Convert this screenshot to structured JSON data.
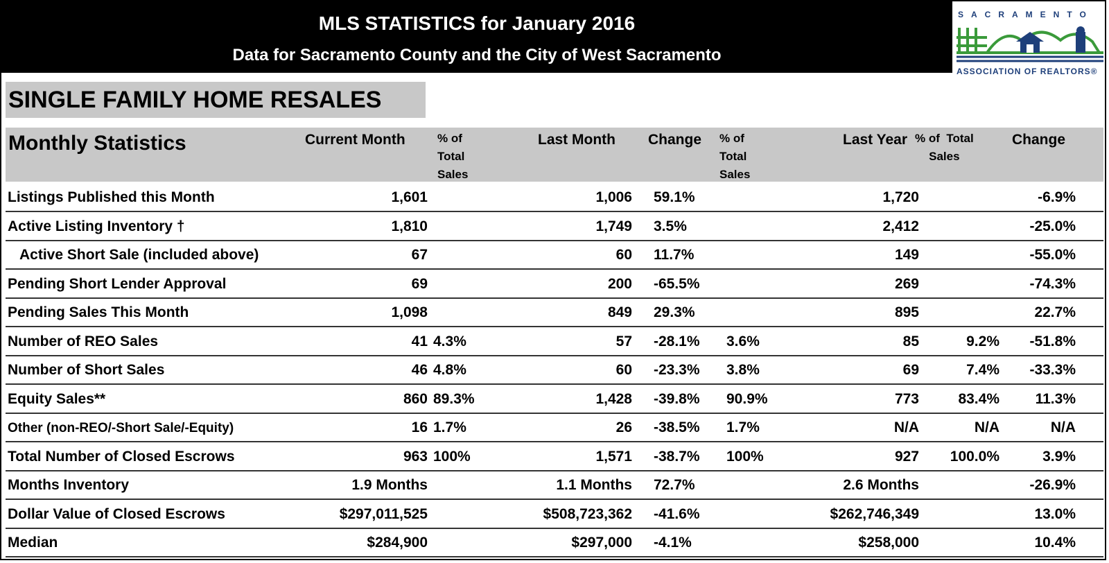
{
  "header": {
    "title": "MLS STATISTICS for January 2016",
    "subtitle": "Data for Sacramento County and the City of West Sacramento"
  },
  "logo": {
    "top_text": "SACRAMENTO",
    "bottom_text": "ASSOCIATION OF REALTORS®",
    "colors": {
      "green": "#3a9a3a",
      "blue": "#1e3f7a"
    }
  },
  "section_title": "SINGLE FAMILY HOME RESALES",
  "columns": {
    "label": "Monthly Statistics",
    "current_month": "Current Month",
    "pct_total_1": "% of\nTotal\nSales",
    "last_month": "Last Month",
    "change_1": "Change",
    "pct_total_2": "% of\nTotal\nSales",
    "last_year": "Last Year",
    "pct_total_3": "% of  Total\nSales",
    "change_2": "Change"
  },
  "rows": [
    {
      "label": "Listings Published this Month",
      "cur": "1,601",
      "cur_pct": "",
      "last": "1,006",
      "chg": "59.1%",
      "last_pct": "",
      "ly": "1,720",
      "ly_pct": "",
      "ly_chg": "-6.9%"
    },
    {
      "label": "Active Listing Inventory †",
      "cur": "1,810",
      "cur_pct": "",
      "last": "1,749",
      "chg": "3.5%",
      "last_pct": "",
      "ly": "2,412",
      "ly_pct": "",
      "ly_chg": "-25.0%"
    },
    {
      "label": "Active Short Sale (included above)",
      "cur": "67",
      "cur_pct": "",
      "last": "60",
      "chg": "11.7%",
      "last_pct": "",
      "ly": "149",
      "ly_pct": "",
      "ly_chg": "-55.0%"
    },
    {
      "label": "Pending Short Lender Approval",
      "cur": "69",
      "cur_pct": "",
      "last": "200",
      "chg": "-65.5%",
      "last_pct": "",
      "ly": "269",
      "ly_pct": "",
      "ly_chg": "-74.3%"
    },
    {
      "label": "Pending Sales This Month",
      "cur": "1,098",
      "cur_pct": "",
      "last": "849",
      "chg": "29.3%",
      "last_pct": "",
      "ly": "895",
      "ly_pct": "",
      "ly_chg": "22.7%"
    },
    {
      "label": "Number of REO Sales",
      "cur": "41",
      "cur_pct": "4.3%",
      "last": "57",
      "chg": "-28.1%",
      "last_pct": "3.6%",
      "ly": "85",
      "ly_pct": "9.2%",
      "ly_chg": "-51.8%"
    },
    {
      "label": "Number of Short Sales",
      "cur": "46",
      "cur_pct": "4.8%",
      "last": "60",
      "chg": "-23.3%",
      "last_pct": "3.8%",
      "ly": "69",
      "ly_pct": "7.4%",
      "ly_chg": "-33.3%"
    },
    {
      "label": "Equity Sales**",
      "cur": "860",
      "cur_pct": "89.3%",
      "last": "1,428",
      "chg": "-39.8%",
      "last_pct": "90.9%",
      "ly": "773",
      "ly_pct": "83.4%",
      "ly_chg": "11.3%"
    },
    {
      "label": "Other (non-REO/-Short Sale/-Equity)",
      "cur": "16",
      "cur_pct": "1.7%",
      "last": "26",
      "chg": "-38.5%",
      "last_pct": "1.7%",
      "ly": "N/A",
      "ly_pct": "N/A",
      "ly_chg": "N/A"
    },
    {
      "label": "Total Number of Closed Escrows",
      "cur": "963",
      "cur_pct": "100%",
      "last": "1,571",
      "chg": "-38.7%",
      "last_pct": "100%",
      "ly": "927",
      "ly_pct": "100.0%",
      "ly_chg": "3.9%"
    },
    {
      "label": "Months Inventory",
      "cur": "1.9 Months",
      "cur_pct": "",
      "last": "1.1 Months",
      "chg": "72.7%",
      "last_pct": "",
      "ly": "2.6 Months",
      "ly_pct": "",
      "ly_chg": "-26.9%"
    },
    {
      "label": "Dollar Value of Closed Escrows",
      "cur": "$297,011,525",
      "cur_pct": "",
      "last": "$508,723,362",
      "chg": "-41.6%",
      "last_pct": "",
      "ly": "$262,746,349",
      "ly_pct": "",
      "ly_chg": "13.0%"
    },
    {
      "label": "Median",
      "cur": "$284,900",
      "cur_pct": "",
      "last": "$297,000",
      "chg": "-4.1%",
      "last_pct": "",
      "ly": "$258,000",
      "ly_pct": "",
      "ly_chg": "10.4%"
    }
  ]
}
